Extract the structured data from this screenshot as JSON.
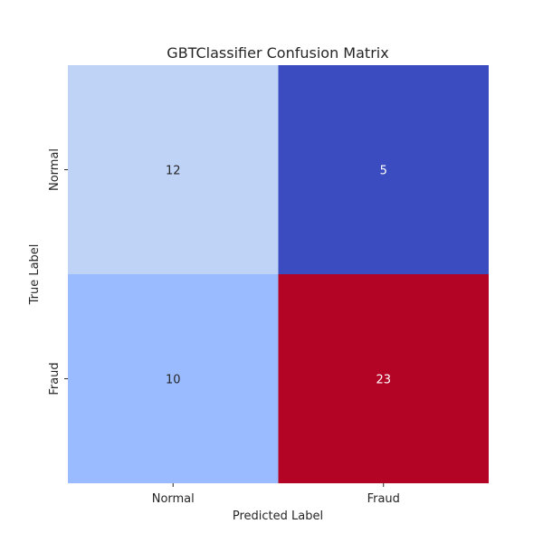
{
  "chart_data": {
    "type": "heatmap",
    "title": "GBTClassifier Confusion Matrix",
    "xlabel": "Predicted Label",
    "ylabel": "True Label",
    "x_categories": [
      "Normal",
      "Fraud"
    ],
    "y_categories": [
      "Normal",
      "Fraud"
    ],
    "values": [
      [
        12,
        5
      ],
      [
        10,
        23
      ]
    ],
    "colormap": "coolwarm",
    "color_range": [
      5,
      23
    ],
    "show_colorbar": false,
    "annotations": true
  },
  "colors": {
    "cells": [
      [
        "#bfd3f6",
        "#3b4cc0"
      ],
      [
        "#9abbff",
        "#b40426"
      ]
    ],
    "text_on_light": "#262626",
    "text_on_dark": "#ffffff"
  }
}
